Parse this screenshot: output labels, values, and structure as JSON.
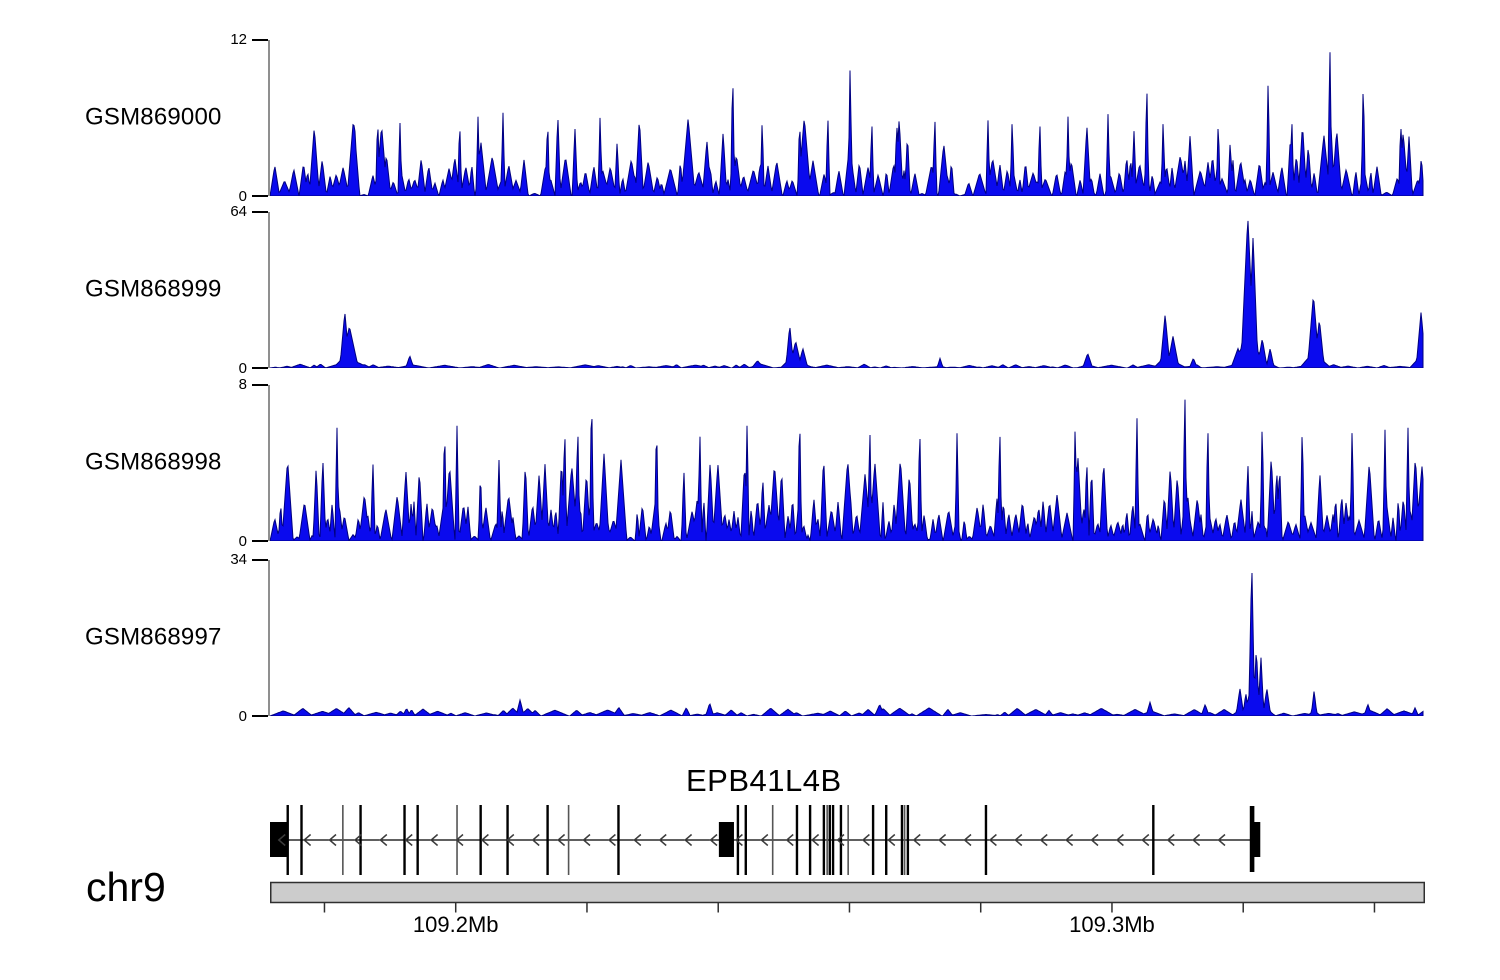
{
  "chart_data": {
    "type": "area",
    "description": "Genome browser coverage view, four sample tracks over gene EPB41L4B on chr9",
    "colors": {
      "signal_fill": "#0a0aee",
      "signal_stroke": "#000080",
      "axis_line": "#8f8f8f",
      "tick_color": "#000000",
      "gene_color": "#000000",
      "gene_gray": "#555555",
      "arrow_color": "#3c3c3c",
      "bar_fill": "#cccccc",
      "bar_border": "#2f2f2f"
    },
    "tracks": [
      {
        "name": "GSM869000",
        "ylim": [
          0,
          12
        ],
        "ymax_label": "12",
        "yzero_label": "0",
        "style": "dense",
        "noise": {
          "seed": 11,
          "tri_width": [
            5,
            14
          ],
          "base_height": [
            1.0,
            3.2
          ],
          "mid_spike_h": [
            3.8,
            6.3
          ],
          "mid_spike_p": 0.13,
          "gap_p": 0.05
        },
        "peaks": [
          [
            109.1846,
            6
          ],
          [
            109.1881,
            6.3
          ],
          [
            109.1915,
            5.8
          ],
          [
            109.2006,
            6
          ],
          [
            109.2034,
            6.2
          ],
          [
            109.2072,
            6.5
          ],
          [
            109.214,
            6.2
          ],
          [
            109.222,
            6.3
          ],
          [
            109.2422,
            10
          ],
          [
            109.2467,
            6
          ],
          [
            109.2524,
            6.2
          ],
          [
            109.2567,
            6.4
          ],
          [
            109.2601,
            10.3
          ],
          [
            109.2634,
            6
          ],
          [
            109.2672,
            6.1
          ],
          [
            109.273,
            6.4
          ],
          [
            109.2811,
            6
          ],
          [
            109.2848,
            6.2
          ],
          [
            109.289,
            6
          ],
          [
            109.2933,
            6.1
          ],
          [
            109.2994,
            6.4
          ],
          [
            109.3053,
            9
          ],
          [
            109.3078,
            6
          ],
          [
            109.3162,
            6
          ],
          [
            109.3238,
            9.2
          ],
          [
            109.3274,
            6.2
          ],
          [
            109.3332,
            12
          ],
          [
            109.3383,
            9.3
          ],
          [
            109.344,
            6
          ]
        ]
      },
      {
        "name": "GSM868999",
        "ylim": [
          0,
          64
        ],
        "ymax_label": "64",
        "yzero_label": "0",
        "style": "sparse",
        "noise": {
          "seed": 23,
          "bump_width": [
            8,
            34
          ],
          "base_height": [
            0.25,
            1.6
          ]
        },
        "peaks": [
          [
            109.1831,
            23,
            5
          ],
          [
            109.1838,
            17,
            9
          ],
          [
            109.193,
            5,
            4
          ],
          [
            109.246,
            3,
            6
          ],
          [
            109.2509,
            17.5,
            4
          ],
          [
            109.2518,
            11,
            6
          ],
          [
            109.2529,
            8,
            5
          ],
          [
            109.2738,
            4,
            3
          ],
          [
            109.2963,
            6,
            5
          ],
          [
            109.3081,
            22,
            5
          ],
          [
            109.3093,
            13,
            6
          ],
          [
            109.3124,
            4,
            4
          ],
          [
            109.3192,
            8,
            7
          ],
          [
            109.3207,
            62,
            7
          ],
          [
            109.3215,
            54,
            5
          ],
          [
            109.3229,
            12,
            5
          ],
          [
            109.3241,
            8,
            4
          ],
          [
            109.3307,
            30,
            6
          ],
          [
            109.3316,
            20,
            5
          ],
          [
            109.3471,
            23,
            5
          ]
        ]
      },
      {
        "name": "GSM868998",
        "ylim": [
          0,
          8
        ],
        "ymax_label": "8",
        "yzero_label": "0",
        "style": "dense",
        "noise": {
          "seed": 5,
          "tri_width": [
            4,
            12
          ],
          "base_height": [
            0.8,
            2.4
          ],
          "mid_spike_h": [
            3.3,
            4.4
          ],
          "mid_spike_p": 0.2,
          "gap_p": 0.05
        },
        "peaks": [
          [
            109.1819,
            6
          ],
          [
            109.1983,
            6.2
          ],
          [
            109.2002,
            6
          ],
          [
            109.2166,
            6.3
          ],
          [
            109.2186,
            6
          ],
          [
            109.2207,
            8
          ],
          [
            109.2226,
            4.5,
            5
          ],
          [
            109.2306,
            6.4
          ],
          [
            109.2372,
            5.8
          ],
          [
            109.2444,
            6.2
          ],
          [
            109.2524,
            6.9
          ],
          [
            109.2631,
            6
          ],
          [
            109.2707,
            6.2
          ],
          [
            109.2764,
            5.8
          ],
          [
            109.2829,
            6.1
          ],
          [
            109.2944,
            6.3
          ],
          [
            109.3038,
            6.6
          ],
          [
            109.3111,
            8
          ],
          [
            109.3146,
            6.2
          ],
          [
            109.3229,
            6.4
          ],
          [
            109.329,
            6.2
          ],
          [
            109.3366,
            6
          ],
          [
            109.3416,
            5.8
          ],
          [
            109.3451,
            6
          ]
        ]
      },
      {
        "name": "GSM868997",
        "ylim": [
          0,
          34
        ],
        "ymax_label": "34",
        "yzero_label": "0",
        "style": "sparse",
        "noise": {
          "seed": 41,
          "bump_width": [
            7,
            30
          ],
          "base_height": [
            0.3,
            1.9
          ]
        },
        "peaks": [
          [
            109.2098,
            3.5,
            4
          ],
          [
            109.2387,
            2.8,
            4
          ],
          [
            109.2646,
            2.5,
            5
          ],
          [
            109.3058,
            3,
            4
          ],
          [
            109.3142,
            2.5,
            4
          ],
          [
            109.3195,
            6,
            4
          ],
          [
            109.3204,
            5,
            3
          ],
          [
            109.3213,
            34,
            3
          ],
          [
            109.322,
            15,
            3
          ],
          [
            109.3227,
            13,
            3
          ],
          [
            109.3236,
            6,
            4
          ],
          [
            109.3308,
            5.5,
            3
          ],
          [
            109.339,
            2.5,
            4
          ]
        ]
      }
    ],
    "gene": {
      "name": "EPB41L4B",
      "strand": "-",
      "span_mb": [
        109.1712,
        109.3222
      ],
      "boxes_mb": [
        [
          109.1712,
          109.1743
        ],
        [
          109.2401,
          109.2424
        ],
        [
          109.3216,
          109.3226
        ]
      ],
      "tall_bar_mb": [
        109.321,
        109.3217
      ],
      "exon_lines_mb": [
        109.1744,
        109.1765,
        109.1828,
        109.1855,
        109.1922,
        109.1942,
        109.2002,
        109.2038,
        109.2079,
        109.214,
        109.2172,
        109.2248,
        109.243,
        109.2442,
        109.2483,
        109.252,
        109.254,
        109.2561,
        109.2566,
        109.257,
        109.2575,
        109.2587,
        109.2598,
        109.2636,
        109.2656,
        109.268,
        109.2684,
        109.2689,
        109.2808,
        109.3063
      ]
    },
    "genome_axis": {
      "chrom": "chr9",
      "from_mb": 109.1717,
      "to_mb": 109.3477,
      "first_tick_mb": 109.18,
      "tick_interval_mb": 0.02,
      "labeled_ticks": [
        {
          "mb": 109.2,
          "label": "109.2Mb"
        },
        {
          "mb": 109.3,
          "label": "109.3Mb"
        }
      ]
    }
  }
}
